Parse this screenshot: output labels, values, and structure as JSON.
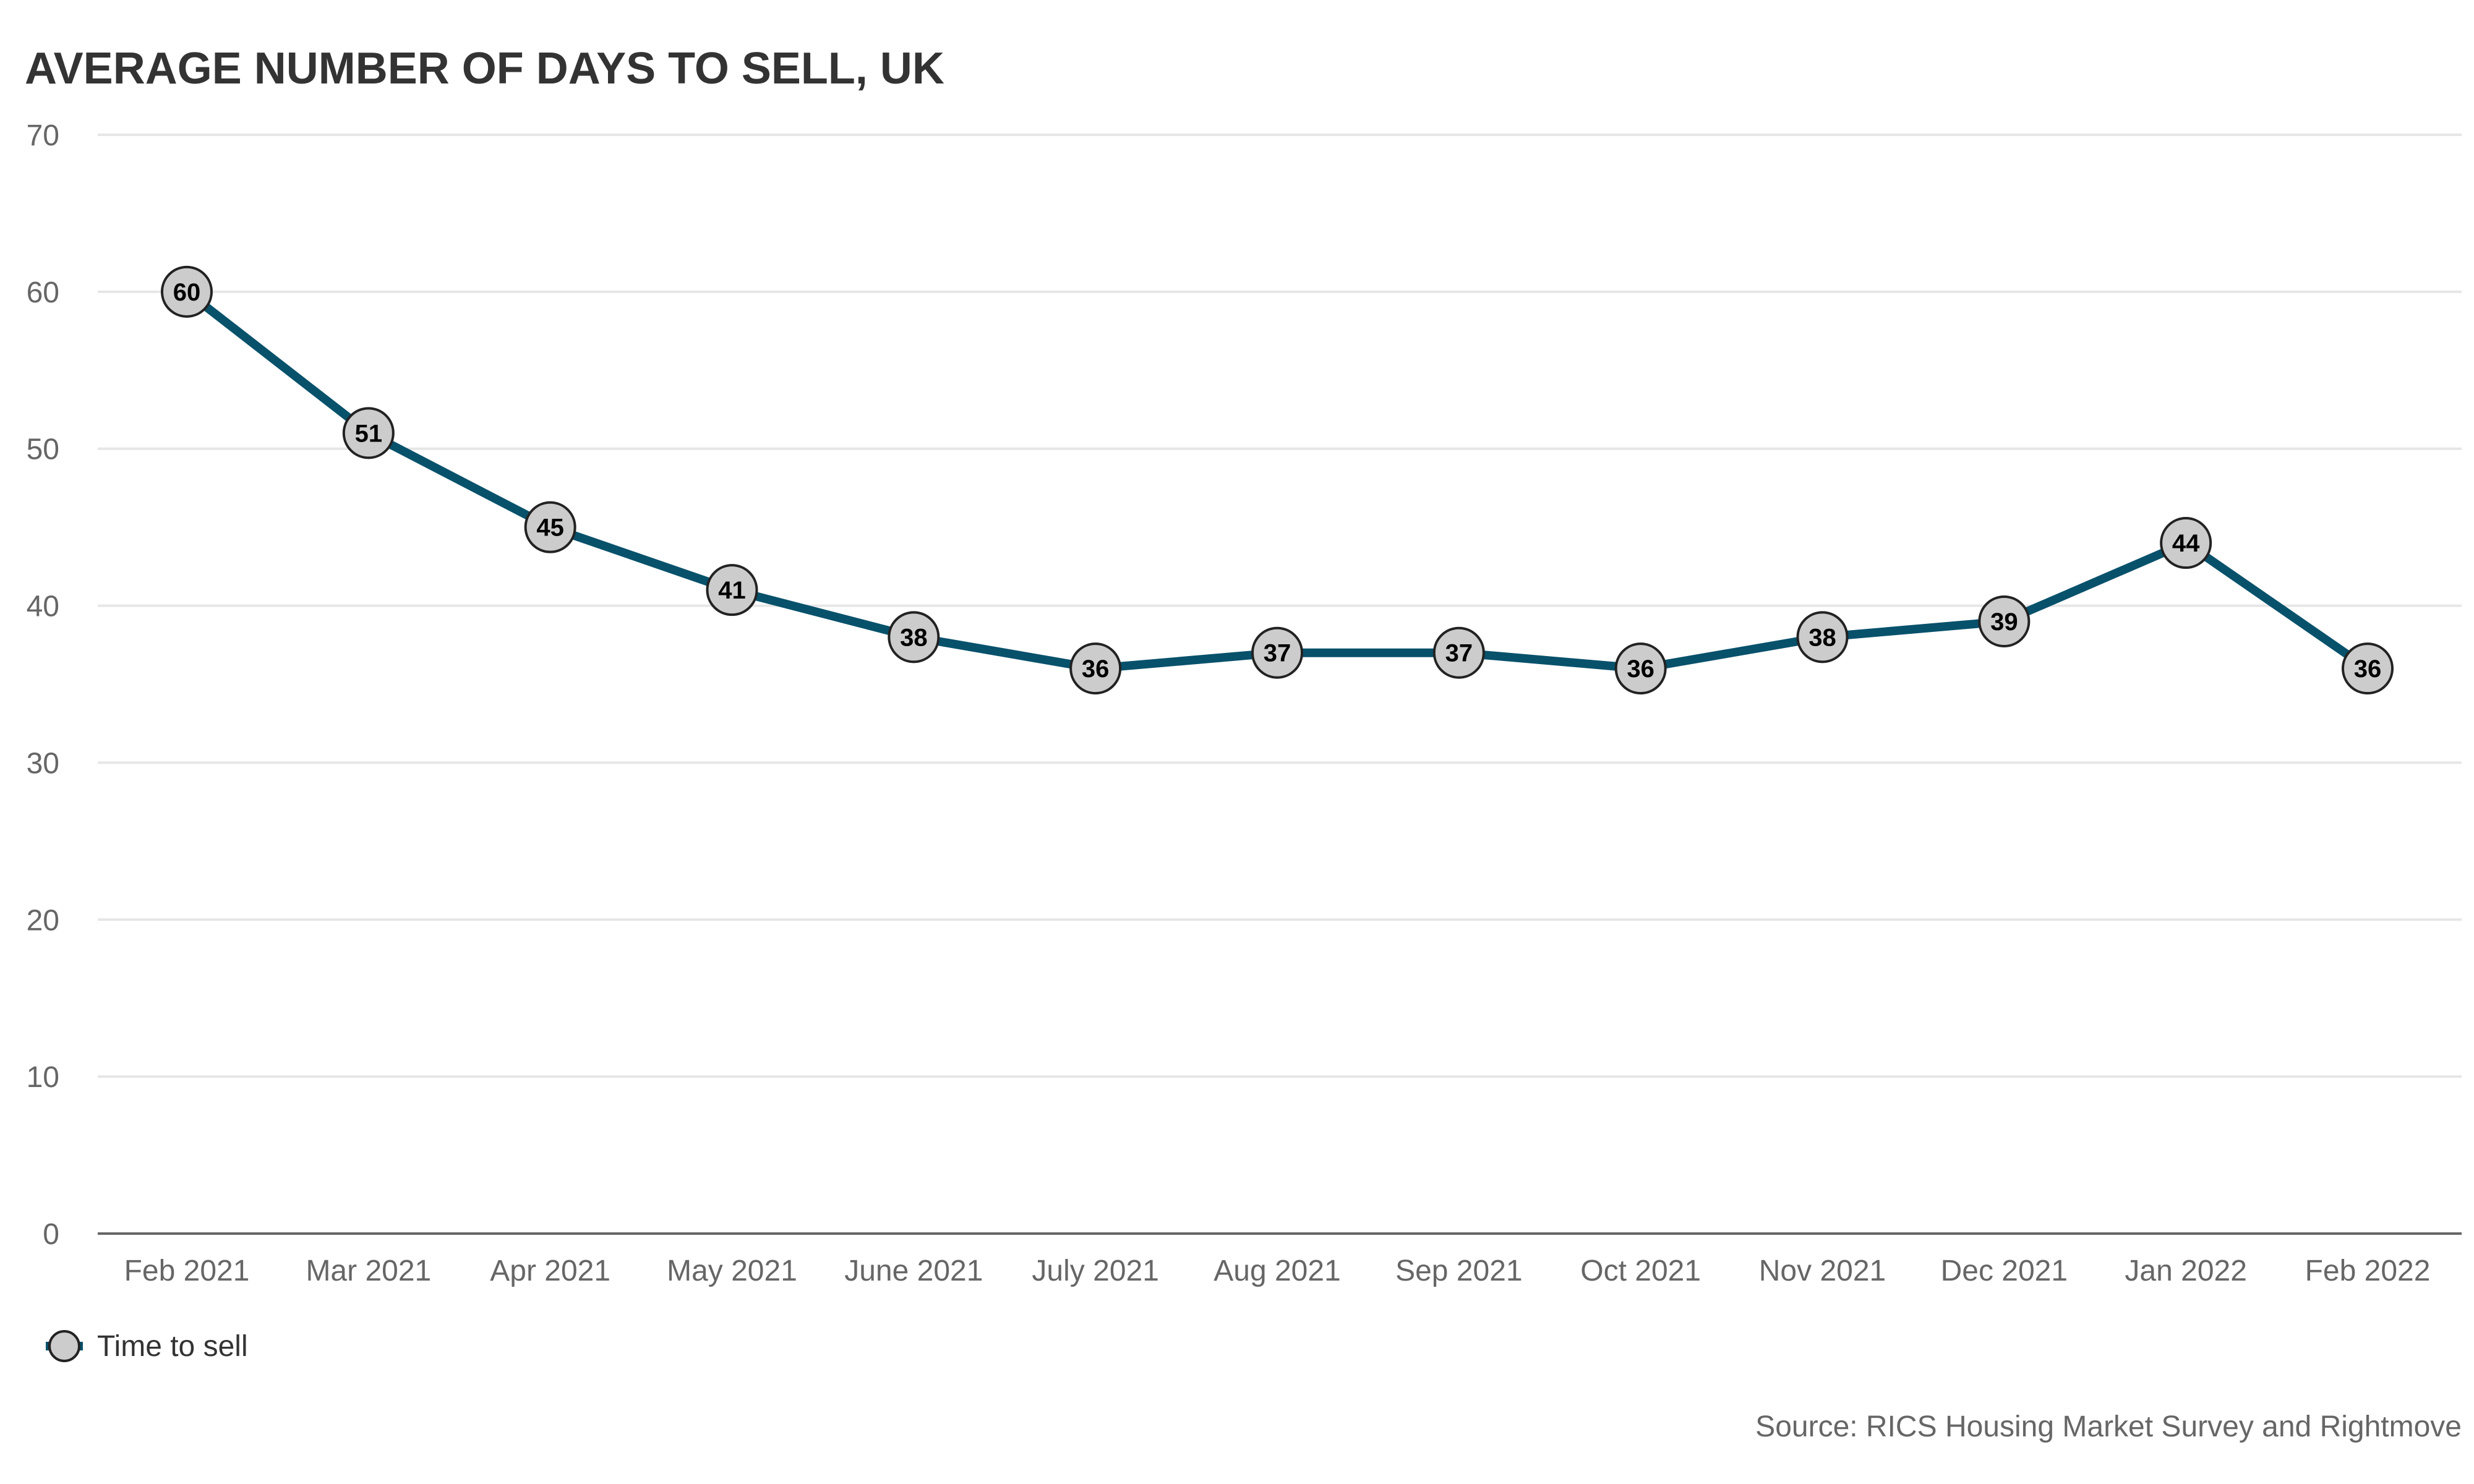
{
  "chart_data": {
    "type": "line",
    "title": "AVERAGE NUMBER OF DAYS TO SELL, UK",
    "categories": [
      "Feb 2021",
      "Mar 2021",
      "Apr 2021",
      "May 2021",
      "June 2021",
      "July 2021",
      "Aug 2021",
      "Sep 2021",
      "Oct 2021",
      "Nov 2021",
      "Dec 2021",
      "Jan 2022",
      "Feb 2022"
    ],
    "series": [
      {
        "name": "Time to sell",
        "values": [
          60,
          51,
          45,
          41,
          38,
          36,
          37,
          37,
          36,
          38,
          39,
          44,
          36
        ],
        "line_color": "#07516b",
        "marker_color": "#cccccc"
      }
    ],
    "yticks": [
      0,
      10,
      20,
      30,
      40,
      50,
      60,
      70
    ],
    "ylim": [
      0,
      70
    ],
    "xlabel": "",
    "ylabel": "",
    "grid": true,
    "legend": "bottom-left",
    "data_labels": true
  },
  "source_text": "Source: RICS Housing Market Survey and Rightmove"
}
